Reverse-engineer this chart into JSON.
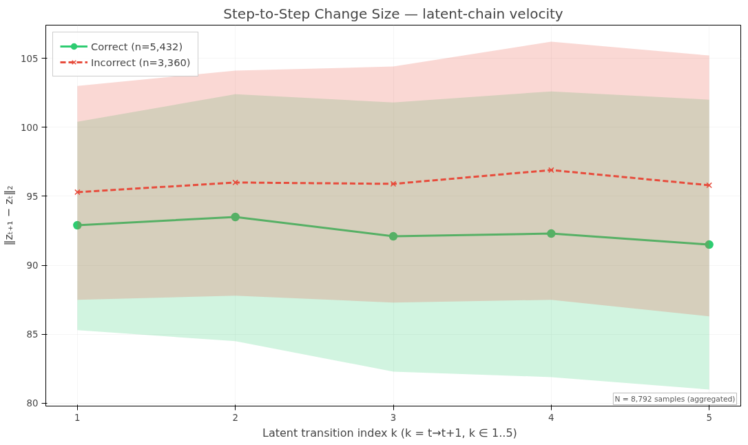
{
  "chart_data": {
    "type": "line",
    "title": "Step-to-Step Change Size — latent-chain velocity",
    "xlabel": "Latent transition index  k  (k = t→t+1, k ∈ 1..5)",
    "ylabel": "‖zₜ₊₁ − zₜ‖₂",
    "x": [
      1,
      2,
      3,
      4,
      5
    ],
    "series": [
      {
        "name": "Correct (n=5,432)",
        "color": "#2ecc71",
        "marker": "circle",
        "line_style": "solid",
        "values": [
          92.9,
          93.5,
          92.1,
          92.3,
          91.5
        ],
        "lower": [
          85.3,
          84.5,
          82.3,
          81.9,
          81.0
        ],
        "upper": [
          100.4,
          102.4,
          101.8,
          102.6,
          102.0
        ]
      },
      {
        "name": "Incorrect (n=3,360)",
        "color": "#e74c3c",
        "marker": "cross",
        "line_style": "dashed",
        "values": [
          95.3,
          96.0,
          95.9,
          96.9,
          95.8
        ],
        "lower": [
          87.5,
          87.8,
          87.3,
          87.5,
          86.3
        ],
        "upper": [
          103.0,
          104.1,
          104.4,
          106.2,
          105.2
        ]
      }
    ],
    "xlim": [
      0.8,
      5.2
    ],
    "ylim": [
      79.8,
      107.4
    ],
    "xticks": [
      1,
      2,
      3,
      4,
      5
    ],
    "yticks": [
      80,
      85,
      90,
      95,
      100,
      105
    ],
    "grid": true,
    "legend": "top left",
    "annotations": [
      "N = 8,792 samples (aggregated)"
    ]
  }
}
